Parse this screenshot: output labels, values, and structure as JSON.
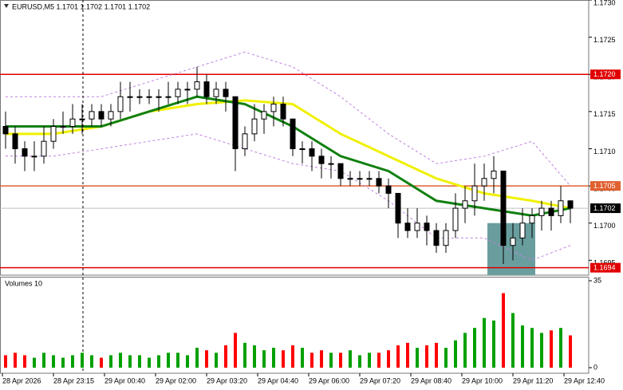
{
  "chart_data": {
    "type": "candlestick",
    "title": "EURUSD,M5  1.1701 1.1702 1.1701 1.1702",
    "x": [
      1,
      4,
      7,
      10,
      13,
      16,
      19,
      22,
      25,
      28,
      31,
      34,
      37,
      40,
      43,
      46,
      49,
      52,
      55,
      58,
      61,
      64,
      67,
      70,
      73,
      76,
      79,
      82,
      85,
      88,
      91,
      94,
      97,
      100,
      103,
      106,
      109,
      112,
      115,
      118,
      121,
      124,
      127,
      130,
      133,
      136,
      139,
      142,
      145,
      148,
      151,
      154,
      157,
      160,
      163,
      166,
      169,
      172,
      175,
      178
    ],
    "open": [
      1.1713,
      1.1712,
      1.171,
      1.1709,
      1.1709,
      1.1711,
      1.1713,
      1.1713,
      1.1714,
      1.1714,
      1.1715,
      1.1714,
      1.1715,
      1.1717,
      1.1717,
      1.1717,
      1.1717,
      1.1717,
      1.1717,
      1.1718,
      1.1718,
      1.1719,
      1.1717,
      1.1718,
      1.1717,
      1.171,
      1.1712,
      1.1714,
      1.1715,
      1.1716,
      1.1714,
      1.171,
      1.171,
      1.1709,
      1.1708,
      1.1708,
      1.1706,
      1.1706,
      1.1706,
      1.1706,
      1.1705,
      1.1704,
      1.17,
      1.1699,
      1.17,
      1.1699,
      1.1697,
      1.1699,
      1.1702,
      1.1703,
      1.1705,
      1.1706,
      1.1707,
      1.1697,
      1.1698,
      1.17,
      1.1701,
      1.1702,
      1.1701,
      1.1703
    ],
    "high": [
      1.1715,
      1.1713,
      1.1711,
      1.1711,
      1.1713,
      1.1714,
      1.1715,
      1.1716,
      1.1716,
      1.1716,
      1.1716,
      1.1716,
      1.1719,
      1.1719,
      1.1718,
      1.1718,
      1.1718,
      1.1719,
      1.1719,
      1.1719,
      1.1721,
      1.172,
      1.1719,
      1.1719,
      1.1717,
      1.1713,
      1.1716,
      1.1716,
      1.1717,
      1.1717,
      1.1714,
      1.1711,
      1.1711,
      1.171,
      1.1709,
      1.1708,
      1.1707,
      1.1707,
      1.1707,
      1.1707,
      1.1706,
      1.1704,
      1.1702,
      1.1702,
      1.1701,
      1.17,
      1.17,
      1.1704,
      1.1705,
      1.1708,
      1.1708,
      1.1709,
      1.1707,
      1.17,
      1.1702,
      1.1702,
      1.1703,
      1.1703,
      1.1705,
      1.1703
    ],
    "low": [
      1.171,
      1.1708,
      1.1707,
      1.1707,
      1.1708,
      1.171,
      1.1712,
      1.1712,
      1.1712,
      1.1713,
      1.1713,
      1.1713,
      1.1714,
      1.1715,
      1.1716,
      1.1716,
      1.1715,
      1.1716,
      1.1716,
      1.1716,
      1.1717,
      1.1716,
      1.1716,
      1.1715,
      1.1707,
      1.1709,
      1.1711,
      1.1712,
      1.1713,
      1.1713,
      1.1709,
      1.1708,
      1.1707,
      1.1706,
      1.1706,
      1.1705,
      1.1705,
      1.1705,
      1.1705,
      1.1704,
      1.1702,
      1.1698,
      1.1698,
      1.1698,
      1.1697,
      1.1696,
      1.1696,
      1.1698,
      1.17,
      1.1701,
      1.1703,
      1.1704,
      1.16945,
      1.1695,
      1.1697,
      1.1698,
      1.1699,
      1.1699,
      1.17,
      1.17
    ],
    "close": [
      1.1712,
      1.171,
      1.1709,
      1.1709,
      1.1711,
      1.1713,
      1.1713,
      1.1714,
      1.1714,
      1.1715,
      1.1714,
      1.1715,
      1.1717,
      1.1717,
      1.1717,
      1.1717,
      1.1717,
      1.1717,
      1.1718,
      1.1718,
      1.1719,
      1.1717,
      1.1718,
      1.1717,
      1.171,
      1.1712,
      1.1714,
      1.1715,
      1.1716,
      1.1714,
      1.171,
      1.171,
      1.1709,
      1.1708,
      1.1708,
      1.1706,
      1.1706,
      1.1706,
      1.1706,
      1.1705,
      1.1704,
      1.17,
      1.1699,
      1.17,
      1.1699,
      1.1697,
      1.1699,
      1.1702,
      1.1703,
      1.1705,
      1.1706,
      1.1707,
      1.1697,
      1.1698,
      1.17,
      1.1701,
      1.1702,
      1.1701,
      1.1703,
      1.1702
    ],
    "up_color": "#ffffff",
    "down_color": "#000000",
    "xlim": [
      0,
      184
    ],
    "ylim": [
      1.1693,
      1.173
    ],
    "yticks": [
      {
        "value": 1.173,
        "label": "1.1730"
      },
      1.1725,
      {
        "value": 1.172,
        "label": "1.1720"
      },
      1.1715,
      {
        "value": 1.171,
        "label": "1.1710"
      },
      1.1705,
      {
        "value": 1.17,
        "label": "1.1700"
      },
      1.1695
    ],
    "xticks": [
      {
        "value": 0,
        "label": "28 Apr 2026"
      },
      {
        "value": 16,
        "label": "28 Apr 23:15"
      },
      {
        "value": 32,
        "label": "29 Apr 00:40"
      },
      {
        "value": 48,
        "label": "29 Apr 02:00"
      },
      {
        "value": 64,
        "label": "29 Apr 03:20"
      },
      {
        "value": 80,
        "label": "29 Apr 04:40"
      },
      {
        "value": 96,
        "label": "29 Apr 06:00"
      },
      {
        "value": 112,
        "label": "29 Apr 07:20"
      },
      {
        "value": 128,
        "label": "29 Apr 08:40"
      },
      {
        "value": 144,
        "label": "29 Apr 10:00"
      },
      {
        "value": 160,
        "label": "29 Apr 11:20"
      },
      {
        "value": 176,
        "label": "29 Apr 12:40"
      }
    ],
    "indicators": [
      {
        "color": "#c080e0",
        "dashed": true,
        "x": [
          1,
          16,
          31,
          46,
          61,
          76,
          91,
          106,
          121,
          136,
          151,
          166,
          178
        ],
        "values": [
          1.1717,
          1.1717,
          1.1717,
          1.1719,
          1.1721,
          1.1723,
          1.1721,
          1.1717,
          1.1712,
          1.1708,
          1.1709,
          1.1711,
          1.1705
        ]
      },
      {
        "color": "#c080e0",
        "dashed": true,
        "x": [
          1,
          16,
          31,
          46,
          61,
          76,
          91,
          106,
          121,
          136,
          151,
          166,
          178
        ],
        "values": [
          1.1709,
          1.1709,
          1.171,
          1.1711,
          1.1712,
          1.171,
          1.1708,
          1.1707,
          1.1703,
          1.1698,
          1.1698,
          1.1695,
          1.1697
        ]
      },
      {
        "color": "#f0f000",
        "dashed": false,
        "x": [
          1,
          16,
          31,
          46,
          61,
          76,
          91,
          106,
          121,
          136,
          151,
          166,
          178
        ],
        "values": [
          1.1712,
          1.1712,
          1.1713,
          1.1715,
          1.1716,
          1.17165,
          1.1716,
          1.1712,
          1.1709,
          1.1706,
          1.1704,
          1.1703,
          1.1702
        ]
      },
      {
        "color": "#108010",
        "dashed": false,
        "x": [
          1,
          16,
          31,
          46,
          61,
          76,
          91,
          106,
          121,
          136,
          151,
          166,
          178
        ],
        "values": [
          1.1713,
          1.1713,
          1.1713,
          1.1715,
          1.1717,
          1.1716,
          1.1713,
          1.1709,
          1.1707,
          1.1703,
          1.1702,
          1.1701,
          1.1702
        ]
      }
    ],
    "levels": [
      {
        "value": 1.172,
        "label": "1.1720",
        "color": "#e00000"
      },
      {
        "value": 1.1705,
        "label": "1.1705",
        "color": "#e06030"
      },
      {
        "value": 1.1702,
        "label": "1.1702",
        "color": "#c0c0c0",
        "label_color": "#000000"
      },
      {
        "value": 1.1694,
        "label": "1.1694",
        "color": "#e00000"
      }
    ],
    "zone": {
      "x": [
        152,
        167
      ],
      "y": [
        1.1692,
        1.17
      ],
      "color": "#6a9e9e"
    },
    "separator_x": 25.25,
    "volume": {
      "title": "Volumes 10",
      "values": [
        5,
        6,
        5,
        4,
        6,
        5,
        4,
        5,
        6,
        5,
        4,
        5,
        6,
        5,
        5,
        4,
        5,
        6,
        6,
        5,
        8,
        7,
        6,
        9,
        14,
        10,
        9,
        7,
        8,
        7,
        9,
        8,
        6,
        7,
        6,
        6,
        7,
        5,
        6,
        6,
        7,
        9,
        10,
        8,
        9,
        10,
        8,
        11,
        14,
        16,
        20,
        19,
        30,
        22,
        17,
        16,
        14,
        15,
        16,
        13
      ],
      "ylim": [
        0,
        35
      ],
      "yticks": [
        0,
        35
      ],
      "up_color": "#00a000",
      "down_color": "#ff0000"
    }
  }
}
